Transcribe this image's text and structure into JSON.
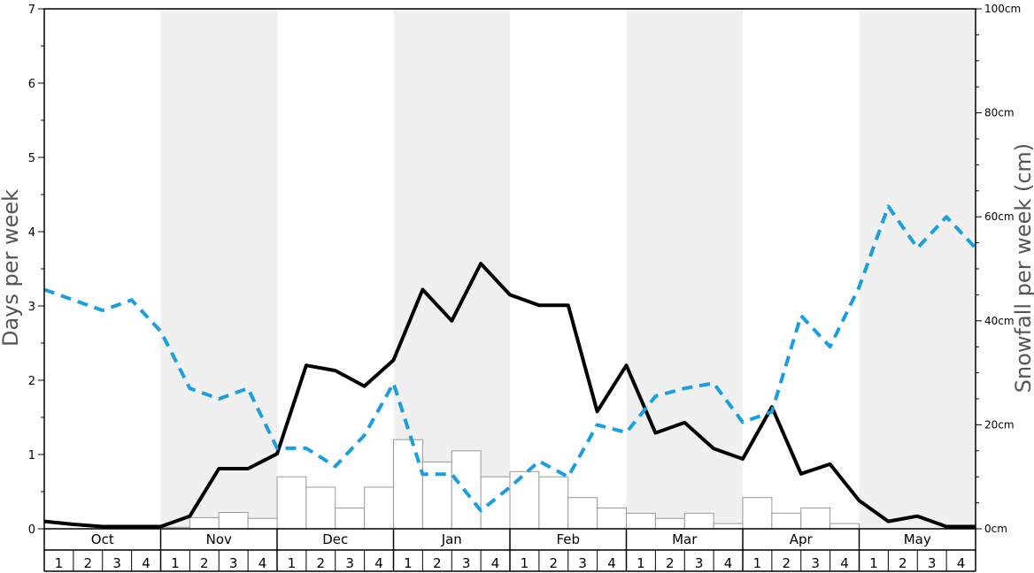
{
  "chart_data": {
    "type": "line",
    "title": "",
    "ylabel_left": "Days per week",
    "ylabel_right": "Snowfall per week (cm)",
    "ylim_left": [
      0,
      7
    ],
    "ylim_right": [
      0,
      100
    ],
    "left_ticks": [
      "0",
      "1",
      "2",
      "3",
      "4",
      "5",
      "6",
      "7"
    ],
    "right_ticks": [
      {
        "value": 0,
        "label": "0cm"
      },
      {
        "value": 20,
        "label": "20cm"
      },
      {
        "value": 40,
        "label": "40cm"
      },
      {
        "value": 60,
        "label": "60cm"
      },
      {
        "value": 80,
        "label": "80cm"
      },
      {
        "value": 100,
        "label": "100cm"
      }
    ],
    "months": [
      "Oct",
      "Nov",
      "Dec",
      "Jan",
      "Feb",
      "Mar",
      "Apr",
      "May"
    ],
    "shaded_months": [
      1,
      3,
      5,
      7
    ],
    "shade_color": "#f0f0f0",
    "weeks": [
      "1",
      "2",
      "3",
      "4"
    ],
    "grid": false,
    "series": [
      {
        "kind": "bar",
        "axis": "left",
        "color": "#ffffff",
        "stroke": "#999999",
        "values": [
          0,
          0,
          0,
          0,
          0.02,
          0.15,
          0.22,
          0.14,
          0.7,
          0.56,
          0.28,
          0.56,
          1.2,
          0.9,
          1.05,
          0.7,
          0.77,
          0.7,
          0.42,
          0.28,
          0.21,
          0.14,
          0.21,
          0.07,
          0.42,
          0.21,
          0.28,
          0.07,
          0,
          0,
          0,
          0
        ]
      },
      {
        "kind": "line",
        "axis": "left",
        "color": "#000000",
        "style": "solid",
        "values": [
          0.1,
          0.06,
          0.03,
          0.03,
          0.03,
          0.17,
          0.81,
          0.81,
          1.01,
          2.2,
          2.13,
          1.92,
          2.27,
          3.22,
          2.8,
          3.57,
          3.15,
          3.01,
          3.01,
          1.58,
          2.2,
          1.29,
          1.43,
          1.08,
          0.94,
          1.64,
          0.74,
          0.87,
          0.38,
          0.1,
          0.17,
          0.03,
          0.03
        ]
      },
      {
        "kind": "line",
        "axis": "right",
        "color": "#1a9ee0",
        "style": "dashed",
        "values": [
          46,
          44,
          42,
          44,
          38,
          27,
          25,
          27,
          15.5,
          15.5,
          12,
          18,
          28,
          10.5,
          10.5,
          3.5,
          8,
          13,
          10,
          20,
          18.5,
          25.5,
          27,
          28,
          20.5,
          22.5,
          41,
          35,
          46.5,
          62,
          54,
          60,
          54
        ]
      }
    ]
  }
}
